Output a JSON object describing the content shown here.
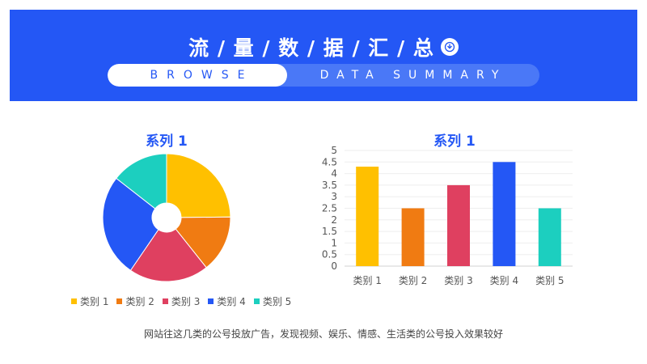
{
  "header": {
    "title": "流 / 量 / 数 / 据 / 汇 / 总",
    "tab_left": "BROWSE",
    "tab_right": "DATA SUMMARY",
    "icon": "chevron-down-circle-icon"
  },
  "caption": "网站往这几类的公号投放广告，发现视频、娱乐、情感、生活类的公号投入效果较好",
  "colors": [
    "#ffc000",
    "#f07b12",
    "#df4060",
    "#2457f5",
    "#1ccfbf"
  ],
  "chart_data": [
    {
      "type": "pie",
      "title": "系列 1",
      "categories": [
        "类别 1",
        "类别 2",
        "类别 3",
        "类别 4",
        "类别 5"
      ],
      "values": [
        4.3,
        2.5,
        3.5,
        4.5,
        2.5
      ],
      "legend": "bottom"
    },
    {
      "type": "bar",
      "title": "系列 1",
      "categories": [
        "类别 1",
        "类别 2",
        "类别 3",
        "类别 4",
        "类别 5"
      ],
      "values": [
        4.3,
        2.5,
        3.5,
        4.5,
        2.5
      ],
      "ylim": [
        0,
        5
      ],
      "yticks": [
        "0",
        "0.5",
        "1",
        "1.5",
        "2",
        "2.5",
        "3",
        "3.5",
        "4",
        "4.5",
        "5"
      ],
      "grid": true
    }
  ]
}
